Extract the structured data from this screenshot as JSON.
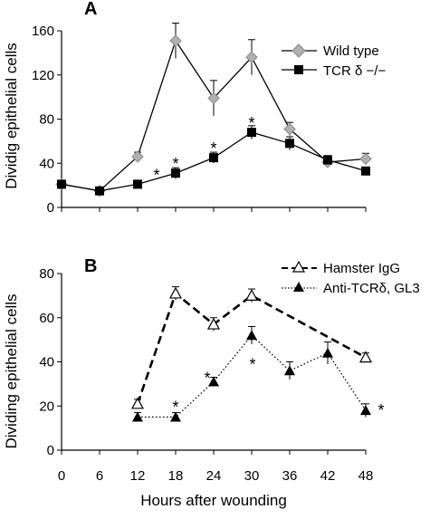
{
  "chart_data": [
    {
      "panel": "A",
      "type": "line",
      "ylabel": "Dividig epithelial cells",
      "xlabel": "",
      "ylim": [
        0,
        160
      ],
      "yticks": [
        0,
        40,
        80,
        120,
        160
      ],
      "x": [
        0,
        6,
        12,
        18,
        24,
        30,
        36,
        42,
        48
      ],
      "series": [
        {
          "name": "Wild type",
          "marker": "diamond",
          "color": "#b0b0b0",
          "x": [
            0,
            6,
            12,
            18,
            24,
            30,
            36,
            42,
            48
          ],
          "values": [
            21,
            15,
            46,
            151,
            99,
            136,
            71,
            41,
            44
          ],
          "errors": [
            3,
            3,
            4,
            16,
            16,
            16,
            6,
            4,
            5
          ]
        },
        {
          "name": "TCR δ −/−",
          "marker": "square",
          "color": "#000000",
          "x": [
            0,
            6,
            12,
            18,
            24,
            30,
            36,
            42,
            48
          ],
          "values": [
            21,
            15,
            21,
            31,
            45,
            68,
            58,
            43,
            33
          ],
          "errors": [
            3,
            2,
            2,
            5,
            5,
            6,
            6,
            4,
            3
          ]
        }
      ],
      "annotations": [
        {
          "text": "*",
          "x": 15,
          "y": 21
        },
        {
          "text": "*",
          "x": 18,
          "y": 31
        },
        {
          "text": "*",
          "x": 24,
          "y": 45
        },
        {
          "text": "*",
          "x": 30,
          "y": 68
        }
      ]
    },
    {
      "panel": "B",
      "type": "line",
      "ylabel": "Dividing epithelial cells",
      "xlabel": "Hours after wounding",
      "ylim": [
        0,
        80
      ],
      "yticks": [
        0,
        20,
        40,
        60,
        80
      ],
      "xlim": [
        0,
        48
      ],
      "xticks": [
        0,
        6,
        12,
        18,
        24,
        30,
        36,
        42,
        48
      ],
      "series": [
        {
          "name": "Hamster IgG",
          "marker": "open-triangle",
          "line": "dashed",
          "color": "#000000",
          "x": [
            12,
            18,
            24,
            30,
            48
          ],
          "values": [
            21,
            71,
            57,
            70,
            42
          ],
          "errors": [
            2,
            3,
            3,
            3,
            2
          ]
        },
        {
          "name": "Anti-TCRδ, GL3",
          "marker": "filled-triangle",
          "line": "dotted",
          "color": "#000000",
          "x": [
            12,
            18,
            24,
            30,
            36,
            42,
            48
          ],
          "values": [
            15,
            15,
            31,
            52,
            36,
            44,
            18
          ],
          "errors": [
            2,
            2,
            2,
            4,
            4,
            5,
            3
          ]
        }
      ],
      "annotations": [
        {
          "text": "*",
          "x": 18,
          "y": 15
        },
        {
          "text": "*",
          "x": 24,
          "y": 31
        },
        {
          "text": "*",
          "x": 30,
          "y": 52
        },
        {
          "text": "*",
          "x": 48,
          "y": 18
        }
      ]
    }
  ]
}
